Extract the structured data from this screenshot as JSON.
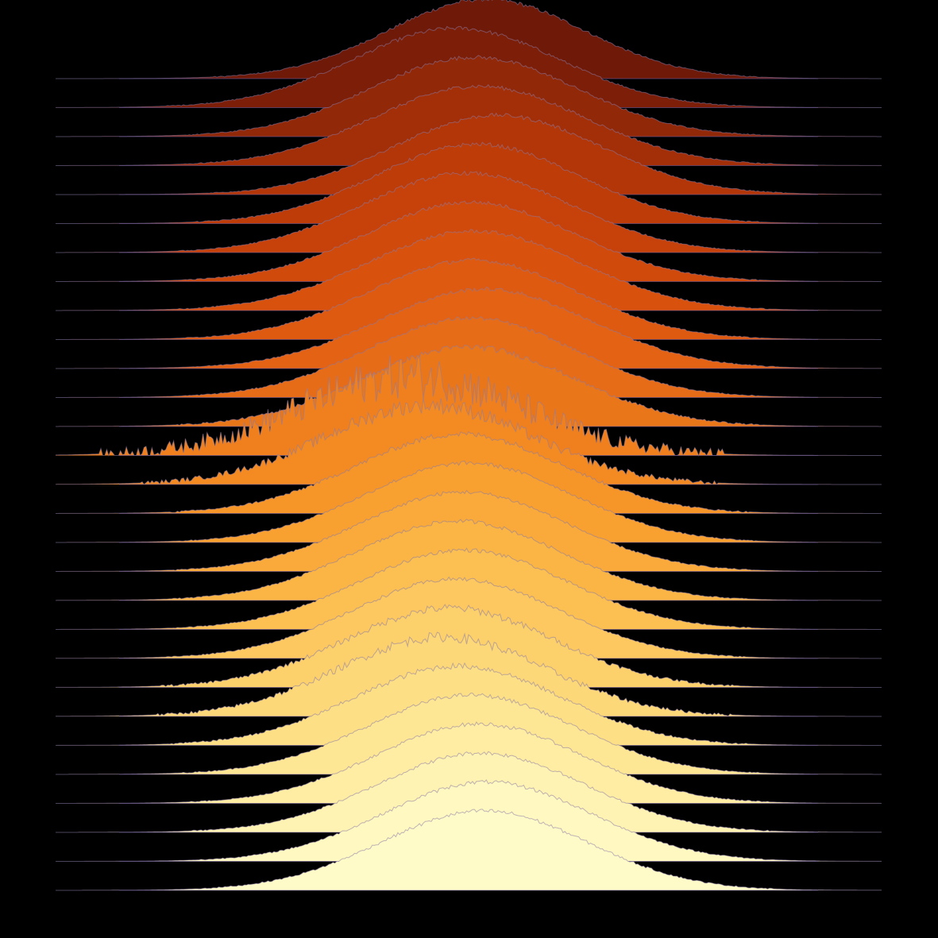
{
  "chart_data": {
    "type": "area",
    "subtype": "ridgeline",
    "title": "",
    "xlabel": "",
    "ylabel": "",
    "axes_visible": false,
    "grid": false,
    "legend": "none",
    "background": "#000000",
    "colormap": "afmhot",
    "xlim": [
      -4,
      4
    ],
    "ylim": [
      0,
      1
    ],
    "series": [
      {
        "index": 0,
        "mean": 0.17,
        "sd": 0.95,
        "noise": 0.02,
        "color": "#6f1a08"
      },
      {
        "index": 1,
        "mean": -0.12,
        "sd": 1.0,
        "noise": 0.02,
        "color": "#7d1f08"
      },
      {
        "index": 2,
        "mean": 0.05,
        "sd": 1.0,
        "noise": 0.02,
        "color": "#912808"
      },
      {
        "index": 3,
        "mean": 0.1,
        "sd": 1.02,
        "noise": 0.02,
        "color": "#a32f08"
      },
      {
        "index": 4,
        "mean": 0.28,
        "sd": 1.0,
        "noise": 0.02,
        "color": "#b23607"
      },
      {
        "index": 5,
        "mean": 0.08,
        "sd": 0.98,
        "noise": 0.02,
        "color": "#bd3c08"
      },
      {
        "index": 6,
        "mean": -0.02,
        "sd": 1.0,
        "noise": 0.02,
        "color": "#c7420a"
      },
      {
        "index": 7,
        "mean": 0.02,
        "sd": 1.0,
        "noise": 0.02,
        "color": "#d04a0c"
      },
      {
        "index": 8,
        "mean": 0.05,
        "sd": 1.02,
        "noise": 0.02,
        "color": "#d8520e"
      },
      {
        "index": 9,
        "mean": 0.04,
        "sd": 1.0,
        "noise": 0.02,
        "color": "#de5a10"
      },
      {
        "index": 10,
        "mean": 0.15,
        "sd": 1.02,
        "noise": 0.02,
        "color": "#e36214"
      },
      {
        "index": 11,
        "mean": 0.02,
        "sd": 1.0,
        "noise": 0.02,
        "color": "#e76c17"
      },
      {
        "index": 12,
        "mean": 0.0,
        "sd": 1.02,
        "noise": 0.03,
        "color": "#ea761a"
      },
      {
        "index": 13,
        "mean": -0.55,
        "sd": 1.08,
        "noise": 0.22,
        "color": "#f0801d"
      },
      {
        "index": 14,
        "mean": -0.38,
        "sd": 1.0,
        "noise": 0.08,
        "color": "#f38a22"
      },
      {
        "index": 15,
        "mean": -0.08,
        "sd": 1.0,
        "noise": 0.03,
        "color": "#f69628"
      },
      {
        "index": 16,
        "mean": 0.0,
        "sd": 1.0,
        "noise": 0.02,
        "color": "#f8a030"
      },
      {
        "index": 17,
        "mean": -0.05,
        "sd": 1.0,
        "noise": 0.02,
        "color": "#f9aa3a"
      },
      {
        "index": 18,
        "mean": -0.1,
        "sd": 1.0,
        "noise": 0.02,
        "color": "#fab545"
      },
      {
        "index": 19,
        "mean": -0.05,
        "sd": 1.0,
        "noise": 0.02,
        "color": "#fbbf52"
      },
      {
        "index": 20,
        "mean": -0.12,
        "sd": 1.0,
        "noise": 0.02,
        "color": "#fcc85f"
      },
      {
        "index": 21,
        "mean": -0.18,
        "sd": 1.0,
        "noise": 0.04,
        "color": "#fcd06b"
      },
      {
        "index": 22,
        "mean": -0.25,
        "sd": 1.0,
        "noise": 0.05,
        "color": "#fdd878"
      },
      {
        "index": 23,
        "mean": -0.1,
        "sd": 1.0,
        "noise": 0.03,
        "color": "#fde086"
      },
      {
        "index": 24,
        "mean": 0.02,
        "sd": 1.0,
        "noise": 0.02,
        "color": "#fee794"
      },
      {
        "index": 25,
        "mean": 0.1,
        "sd": 1.0,
        "noise": 0.02,
        "color": "#feeda3"
      },
      {
        "index": 26,
        "mean": 0.12,
        "sd": 1.0,
        "noise": 0.02,
        "color": "#fef3b2"
      },
      {
        "index": 27,
        "mean": 0.18,
        "sd": 1.0,
        "noise": 0.02,
        "color": "#fff8c0"
      },
      {
        "index": 28,
        "mean": 0.15,
        "sd": 1.0,
        "noise": 0.02,
        "color": "#fffbc8"
      }
    ]
  }
}
